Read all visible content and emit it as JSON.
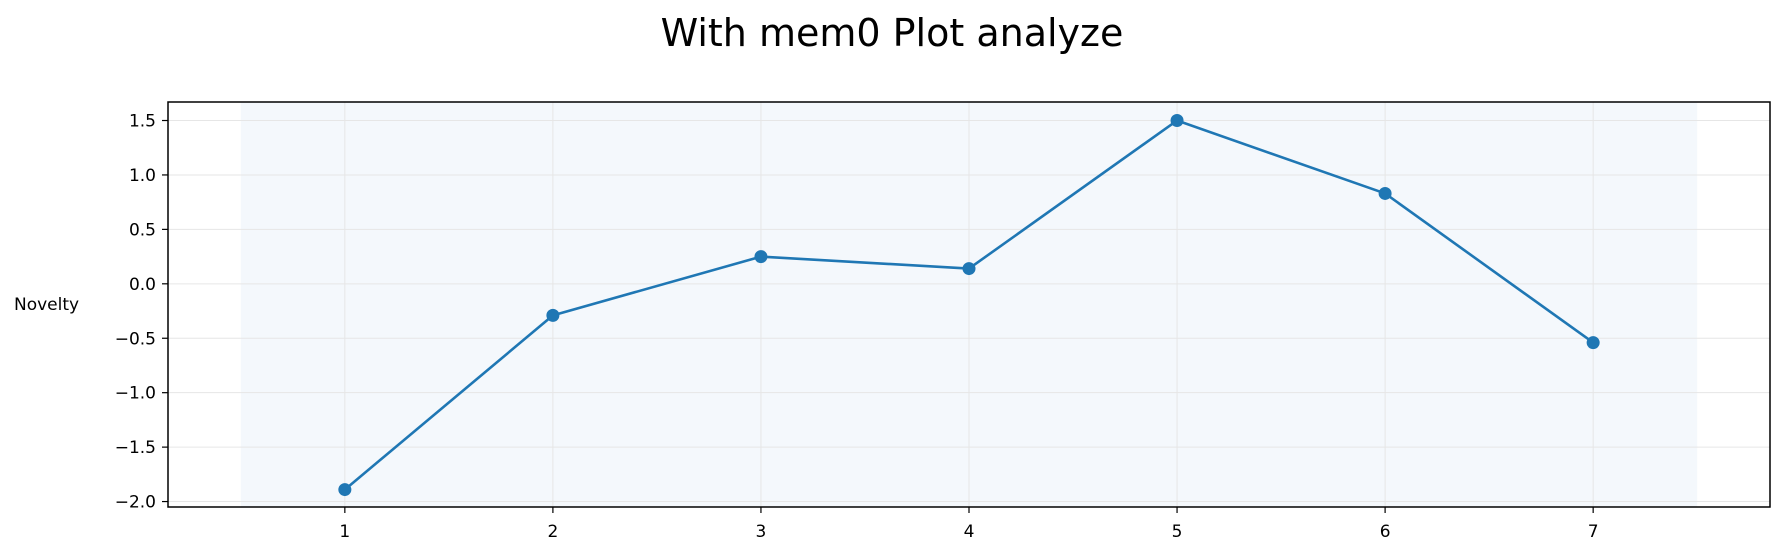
{
  "chart_data": {
    "type": "line",
    "title": "With mem0 Plot analyze",
    "xlabel": "",
    "ylabel": "Novelty",
    "x": [
      1,
      2,
      3,
      4,
      5,
      6,
      7
    ],
    "series": [
      {
        "values": [
          -1.89,
          -0.29,
          0.25,
          0.14,
          1.5,
          0.83,
          -0.54
        ]
      }
    ],
    "xlim": [
      0.15,
      7.85
    ],
    "ylim": [
      -2.05,
      1.67
    ],
    "x_ticks": [
      1,
      2,
      3,
      4,
      5,
      6,
      7
    ],
    "x_tick_labels": [
      "1",
      "2",
      "3",
      "4",
      "5",
      "6",
      "7"
    ],
    "y_ticks": [
      -2.0,
      -1.5,
      -1.0,
      -0.5,
      0.0,
      0.5,
      1.0,
      1.5
    ],
    "y_tick_labels": [
      "−2.0",
      "−1.5",
      "−1.0",
      "−0.5",
      "0.0",
      "0.5",
      "1.0",
      "1.5"
    ],
    "shaded_x_range": [
      0.5,
      7.5
    ],
    "grid": true,
    "legend": "none",
    "colors": {
      "line": "#1f77b4",
      "shade": "#dce8f6",
      "grid": "#e6e6e6"
    }
  }
}
